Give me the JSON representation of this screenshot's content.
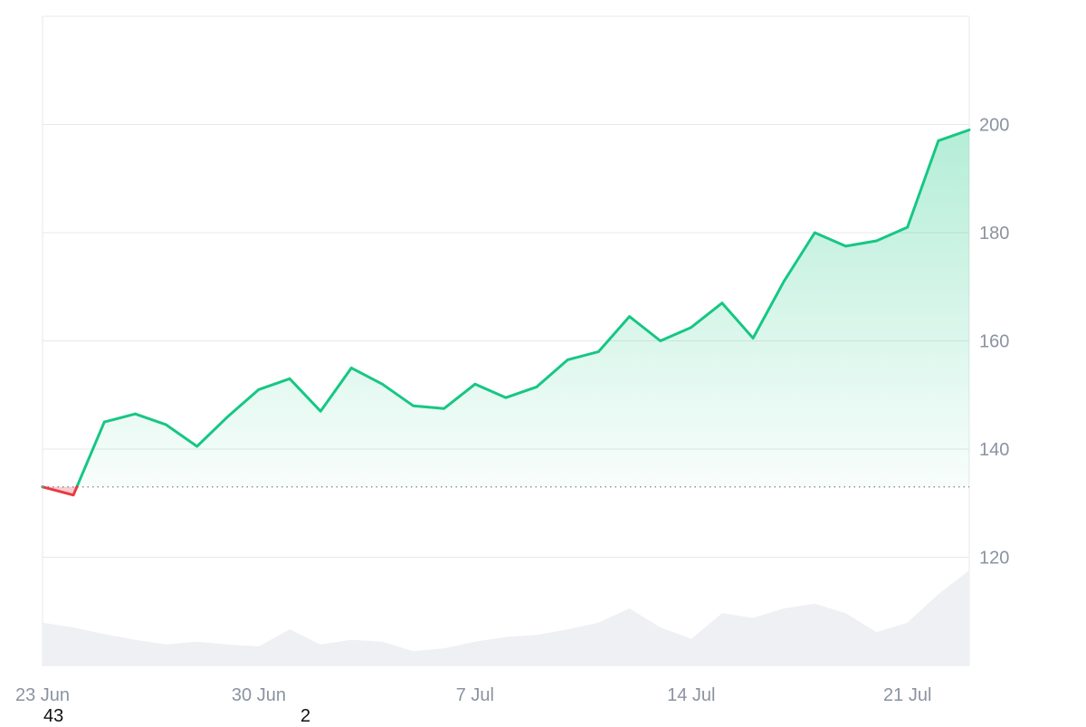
{
  "chart_data": {
    "type": "line",
    "x": [
      "2024-06-23",
      "2024-06-24",
      "2024-06-25",
      "2024-06-26",
      "2024-06-27",
      "2024-06-28",
      "2024-06-29",
      "2024-06-30",
      "2024-07-01",
      "2024-07-02",
      "2024-07-03",
      "2024-07-04",
      "2024-07-05",
      "2024-07-06",
      "2024-07-07",
      "2024-07-08",
      "2024-07-09",
      "2024-07-10",
      "2024-07-11",
      "2024-07-12",
      "2024-07-13",
      "2024-07-14",
      "2024-07-15",
      "2024-07-16",
      "2024-07-17",
      "2024-07-18",
      "2024-07-19",
      "2024-07-20",
      "2024-07-21",
      "2024-07-22",
      "2024-07-23"
    ],
    "series": [
      {
        "values": [
          133.0,
          131.5,
          145.0,
          146.5,
          144.5,
          140.5,
          146.0,
          151.0,
          153.0,
          147.0,
          155.0,
          152.0,
          148.0,
          147.5,
          152.0,
          149.5,
          151.5,
          156.5,
          158.0,
          164.5,
          160.0,
          162.5,
          167.0,
          160.5,
          171.0,
          180.0,
          177.5,
          178.5,
          181.0,
          197.0,
          199.0
        ]
      }
    ],
    "baseline": 133,
    "volume": [
      0.45,
      0.4,
      0.33,
      0.27,
      0.22,
      0.25,
      0.22,
      0.2,
      0.38,
      0.22,
      0.27,
      0.25,
      0.15,
      0.18,
      0.25,
      0.3,
      0.32,
      0.38,
      0.45,
      0.6,
      0.4,
      0.28,
      0.55,
      0.5,
      0.6,
      0.65,
      0.55,
      0.35,
      0.45,
      0.75,
      1.0
    ],
    "y_ticks": [
      120,
      140,
      160,
      180,
      200
    ],
    "x_ticks": [
      "23 Jun",
      "30 Jun",
      "7 Jul",
      "14 Jul",
      "21 Jul"
    ],
    "x_tick_dates": [
      "2024-06-23",
      "2024-06-30",
      "2024-07-07",
      "2024-07-14",
      "2024-07-21"
    ],
    "ylim": [
      100,
      220
    ],
    "y_axis_side": "right",
    "grid": true,
    "colors": {
      "up": "#16c784",
      "down": "#ea3943",
      "volume": "#eef0f3",
      "grid": "#e6e8eb",
      "tick": "#8a93a0"
    }
  },
  "stray_labels": {
    "left": "43",
    "mid": "2"
  }
}
